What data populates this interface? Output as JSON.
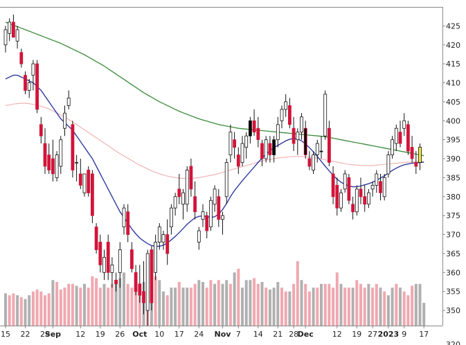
{
  "chart_data": {
    "type": "candlestick",
    "colors": {
      "up_candle": "#ffffff",
      "down_candle": "#d2143a",
      "filled_up_candle": "#000000",
      "last_candle": "#f2e443",
      "ma_short": "#2e3a9e",
      "ma_long": "#3a8a3a",
      "ma_mid": "#f2b4b4",
      "volume_down": "#f0a8b0",
      "volume_up": "#b0b0b0"
    },
    "y_axis": {
      "min": 346,
      "max": 430,
      "ticks": [
        425,
        420,
        415,
        410,
        405,
        400,
        395,
        390,
        385,
        380,
        375,
        370,
        365,
        360,
        355,
        350
      ],
      "partial_bottom_tick": "320"
    },
    "x_labels": [
      {
        "text": "15",
        "i": 0
      },
      {
        "text": "22",
        "i": 5
      },
      {
        "text": "29",
        "i": 10
      },
      {
        "text": "Sep",
        "i": 12,
        "bold": true
      },
      {
        "text": "12",
        "i": 19
      },
      {
        "text": "19",
        "i": 24
      },
      {
        "text": "26",
        "i": 29
      },
      {
        "text": "Oct",
        "i": 34,
        "bold": true
      },
      {
        "text": "10",
        "i": 39
      },
      {
        "text": "17",
        "i": 44
      },
      {
        "text": "24",
        "i": 49
      },
      {
        "text": "Nov",
        "i": 55,
        "bold": true
      },
      {
        "text": "7",
        "i": 59
      },
      {
        "text": "14",
        "i": 64
      },
      {
        "text": "21",
        "i": 69
      },
      {
        "text": "28",
        "i": 73
      },
      {
        "text": "Dec",
        "i": 76,
        "bold": true
      },
      {
        "text": "12",
        "i": 84
      },
      {
        "text": "19",
        "i": 89
      },
      {
        "text": "27",
        "i": 93
      },
      {
        "text": "2023",
        "i": 97,
        "bold": true
      },
      {
        "text": "9",
        "i": 101
      },
      {
        "text": "17",
        "i": 106
      }
    ],
    "candles": [
      {
        "o": 420,
        "h": 425,
        "l": 418,
        "c": 424
      },
      {
        "o": 423,
        "h": 427,
        "l": 421,
        "c": 426
      },
      {
        "o": 426,
        "h": 428,
        "l": 422,
        "c": 422
      },
      {
        "o": 421,
        "h": 425,
        "l": 419,
        "c": 424
      },
      {
        "o": 418,
        "h": 419,
        "l": 414,
        "c": 415
      },
      {
        "o": 412,
        "h": 413,
        "l": 407,
        "c": 408
      },
      {
        "o": 408,
        "h": 411,
        "l": 406,
        "c": 410
      },
      {
        "o": 412,
        "h": 416,
        "l": 408,
        "c": 415
      },
      {
        "o": 415,
        "h": 416,
        "l": 402,
        "c": 403
      },
      {
        "o": 399,
        "h": 401,
        "l": 394,
        "c": 396
      },
      {
        "o": 394,
        "h": 398,
        "l": 386,
        "c": 388
      },
      {
        "o": 391,
        "h": 394,
        "l": 386,
        "c": 387
      },
      {
        "o": 390,
        "h": 395,
        "l": 384,
        "c": 386
      },
      {
        "o": 385,
        "h": 392,
        "l": 384,
        "c": 391
      },
      {
        "o": 388,
        "h": 396,
        "l": 386,
        "c": 395
      },
      {
        "o": 398,
        "h": 404,
        "l": 396,
        "c": 402
      },
      {
        "o": 404,
        "h": 408,
        "l": 403,
        "c": 406
      },
      {
        "o": 399,
        "h": 400,
        "l": 385,
        "c": 387
      },
      {
        "o": 389,
        "h": 391,
        "l": 384,
        "c": 389
      },
      {
        "o": 386,
        "h": 390,
        "l": 382,
        "c": 383
      },
      {
        "o": 381,
        "h": 386,
        "l": 380,
        "c": 386
      },
      {
        "o": 387,
        "h": 388,
        "l": 380,
        "c": 381
      },
      {
        "o": 386,
        "h": 387,
        "l": 373,
        "c": 375
      },
      {
        "o": 372,
        "h": 373,
        "l": 365,
        "c": 366
      },
      {
        "o": 368,
        "h": 370,
        "l": 360,
        "c": 362
      },
      {
        "o": 360,
        "h": 366,
        "l": 358,
        "c": 364
      },
      {
        "o": 368,
        "h": 370,
        "l": 358,
        "c": 360
      },
      {
        "o": 360,
        "h": 364,
        "l": 356,
        "c": 362
      },
      {
        "o": 358,
        "h": 360,
        "l": 355,
        "c": 357
      },
      {
        "o": 360,
        "h": 368,
        "l": 356,
        "c": 366
      },
      {
        "o": 372,
        "h": 378,
        "l": 370,
        "c": 377
      },
      {
        "o": 376,
        "h": 378,
        "l": 368,
        "c": 370
      },
      {
        "o": 366,
        "h": 368,
        "l": 360,
        "c": 361
      },
      {
        "o": 360,
        "h": 362,
        "l": 354,
        "c": 355
      },
      {
        "o": 357,
        "h": 362,
        "l": 352,
        "c": 354
      },
      {
        "o": 355,
        "h": 363,
        "l": 349,
        "c": 352
      },
      {
        "o": 350,
        "h": 366,
        "l": 346,
        "c": 365
      },
      {
        "o": 366,
        "h": 367,
        "l": 350,
        "c": 352
      },
      {
        "o": 360,
        "h": 370,
        "l": 358,
        "c": 368
      },
      {
        "o": 368,
        "h": 373,
        "l": 366,
        "c": 372
      },
      {
        "o": 368,
        "h": 371,
        "l": 366,
        "c": 370
      },
      {
        "o": 370,
        "h": 374,
        "l": 362,
        "c": 365
      },
      {
        "o": 372,
        "h": 378,
        "l": 370,
        "c": 377
      },
      {
        "o": 377,
        "h": 381,
        "l": 375,
        "c": 380
      },
      {
        "o": 382,
        "h": 386,
        "l": 378,
        "c": 380
      },
      {
        "o": 378,
        "h": 382,
        "l": 374,
        "c": 381
      },
      {
        "o": 378,
        "h": 388,
        "l": 376,
        "c": 387
      },
      {
        "o": 388,
        "h": 390,
        "l": 380,
        "c": 382
      },
      {
        "o": 380,
        "h": 384,
        "l": 374,
        "c": 376
      },
      {
        "o": 368,
        "h": 372,
        "l": 366,
        "c": 371
      },
      {
        "o": 374,
        "h": 378,
        "l": 372,
        "c": 376
      },
      {
        "o": 375,
        "h": 376,
        "l": 369,
        "c": 371
      },
      {
        "o": 372,
        "h": 380,
        "l": 371,
        "c": 379
      },
      {
        "o": 378,
        "h": 383,
        "l": 376,
        "c": 382
      },
      {
        "o": 380,
        "h": 382,
        "l": 372,
        "c": 374
      },
      {
        "o": 374,
        "h": 376,
        "l": 370,
        "c": 375
      },
      {
        "o": 380,
        "h": 390,
        "l": 378,
        "c": 389
      },
      {
        "o": 391,
        "h": 399,
        "l": 389,
        "c": 397
      },
      {
        "o": 395,
        "h": 397,
        "l": 390,
        "c": 393
      },
      {
        "o": 391,
        "h": 393,
        "l": 386,
        "c": 388
      },
      {
        "o": 389,
        "h": 396,
        "l": 388,
        "c": 394
      },
      {
        "o": 393,
        "h": 397,
        "l": 390,
        "c": 396
      },
      {
        "o": 396,
        "h": 401,
        "l": 394,
        "c": 400
      },
      {
        "o": 400,
        "h": 403,
        "l": 396,
        "c": 397
      },
      {
        "o": 398,
        "h": 401,
        "l": 393,
        "c": 395
      },
      {
        "o": 394,
        "h": 395,
        "l": 388,
        "c": 390
      },
      {
        "o": 390,
        "h": 396,
        "l": 389,
        "c": 395
      },
      {
        "o": 394,
        "h": 396,
        "l": 389,
        "c": 391
      },
      {
        "o": 391,
        "h": 396,
        "l": 389,
        "c": 395
      },
      {
        "o": 395,
        "h": 401,
        "l": 393,
        "c": 399
      },
      {
        "o": 400,
        "h": 404,
        "l": 398,
        "c": 403
      },
      {
        "o": 403,
        "h": 407,
        "l": 401,
        "c": 405
      },
      {
        "o": 404,
        "h": 406,
        "l": 398,
        "c": 399
      },
      {
        "o": 398,
        "h": 401,
        "l": 392,
        "c": 394
      },
      {
        "o": 395,
        "h": 398,
        "l": 391,
        "c": 397
      },
      {
        "o": 397,
        "h": 402,
        "l": 395,
        "c": 401
      },
      {
        "o": 398,
        "h": 400,
        "l": 390,
        "c": 391
      },
      {
        "o": 390,
        "h": 392,
        "l": 387,
        "c": 388
      },
      {
        "o": 387,
        "h": 392,
        "l": 386,
        "c": 391
      },
      {
        "o": 391,
        "h": 395,
        "l": 389,
        "c": 394
      },
      {
        "o": 392,
        "h": 396,
        "l": 390,
        "c": 392
      },
      {
        "o": 396,
        "h": 408,
        "l": 395,
        "c": 407
      },
      {
        "o": 398,
        "h": 400,
        "l": 388,
        "c": 389
      },
      {
        "o": 386,
        "h": 388,
        "l": 378,
        "c": 380
      },
      {
        "o": 383,
        "h": 385,
        "l": 375,
        "c": 377
      },
      {
        "o": 377,
        "h": 382,
        "l": 376,
        "c": 381
      },
      {
        "o": 382,
        "h": 387,
        "l": 381,
        "c": 386
      },
      {
        "o": 385,
        "h": 386,
        "l": 378,
        "c": 379
      },
      {
        "o": 378,
        "h": 380,
        "l": 374,
        "c": 376
      },
      {
        "o": 376,
        "h": 383,
        "l": 375,
        "c": 382
      },
      {
        "o": 382,
        "h": 385,
        "l": 378,
        "c": 380
      },
      {
        "o": 380,
        "h": 383,
        "l": 376,
        "c": 378
      },
      {
        "o": 378,
        "h": 382,
        "l": 377,
        "c": 381
      },
      {
        "o": 382,
        "h": 384,
        "l": 380,
        "c": 383
      },
      {
        "o": 383,
        "h": 387,
        "l": 381,
        "c": 386
      },
      {
        "o": 384,
        "h": 386,
        "l": 379,
        "c": 381
      },
      {
        "o": 380,
        "h": 386,
        "l": 379,
        "c": 385
      },
      {
        "o": 386,
        "h": 392,
        "l": 385,
        "c": 391
      },
      {
        "o": 391,
        "h": 396,
        "l": 390,
        "c": 395
      },
      {
        "o": 394,
        "h": 399,
        "l": 392,
        "c": 398
      },
      {
        "o": 397,
        "h": 400,
        "l": 393,
        "c": 394
      },
      {
        "o": 398,
        "h": 402,
        "l": 396,
        "c": 400
      },
      {
        "o": 399,
        "h": 400,
        "l": 391,
        "c": 392
      },
      {
        "o": 393,
        "h": 396,
        "l": 389,
        "c": 390
      },
      {
        "o": 389,
        "h": 392,
        "l": 386,
        "c": 388
      },
      {
        "o": 389,
        "h": 394,
        "l": 387,
        "c": 393
      }
    ],
    "ma_short": [
      411,
      411.5,
      412,
      412,
      411.5,
      411,
      410.5,
      410,
      409,
      408,
      406.5,
      405,
      403.5,
      402,
      400.5,
      399.5,
      398.5,
      397.5,
      396,
      394.5,
      393,
      391.5,
      390,
      388,
      386,
      384,
      382,
      380,
      378,
      376,
      374.5,
      373,
      371.5,
      370.2,
      369.1,
      368.3,
      367.6,
      367.1,
      366.9,
      366.9,
      367.2,
      367.8,
      368.6,
      369.5,
      370.5,
      371.6,
      372.7,
      373.6,
      374.4,
      374.8,
      374.9,
      374.8,
      374.5,
      374.7,
      375.4,
      376.6,
      378.2,
      380,
      381.6,
      382.9,
      384.2,
      385.4,
      386.6,
      387.8,
      389,
      390.2,
      391.2,
      392.1,
      392.9,
      393.5,
      394.1,
      394.7,
      395.1,
      395.3,
      395.2,
      394.7,
      393.9,
      392.9,
      391.8,
      390.6,
      389.3,
      388,
      386.8,
      385.6,
      384.6,
      383.8,
      383.2,
      382.8,
      382.6,
      382.6,
      382.8,
      383.1,
      383.4,
      383.8,
      384.3,
      384.9,
      385.5,
      386.2,
      386.9,
      387.5,
      388,
      388.4,
      388.6,
      388.8,
      388.9,
      389,
      389.1
    ],
    "ma_long": [
      426,
      425.6,
      425.2,
      424.8,
      424.4,
      424,
      423.6,
      423.2,
      422.8,
      422.4,
      422,
      421.6,
      421.2,
      420.8,
      420.4,
      419.9,
      419.4,
      418.9,
      418.4,
      417.9,
      417.4,
      416.8,
      416.2,
      415.6,
      415,
      414.4,
      413.7,
      413,
      412.3,
      411.6,
      410.9,
      410.2,
      409.5,
      408.8,
      408.1,
      407.4,
      406.8,
      406.2,
      405.6,
      405,
      404.5,
      404,
      403.5,
      403,
      402.5,
      402.1,
      401.7,
      401.3,
      400.9,
      400.5,
      400.2,
      399.9,
      399.6,
      399.3,
      399,
      398.8,
      398.6,
      398.4,
      398.2,
      398,
      397.9,
      397.8,
      397.7,
      397.6,
      397.5,
      397.4,
      397.3,
      397.2,
      397.1,
      397,
      396.9,
      396.8,
      396.7,
      396.6,
      396.5,
      396.4,
      396.3,
      396.2,
      396.1,
      396,
      395.9,
      395.8,
      395.6,
      395.4,
      395.2,
      395,
      394.8,
      394.6,
      394.4,
      394.2,
      394,
      393.8,
      393.6,
      393.4,
      393.2,
      393,
      392.8,
      392.6,
      392.4,
      392.2,
      392,
      391.8,
      391.6,
      391.4,
      391.2,
      391,
      390.8
    ],
    "ma_mid": [
      404,
      404.2,
      404.4,
      404.5,
      404.6,
      404.6,
      404.5,
      404.3,
      404.1,
      403.8,
      403.5,
      403.1,
      402.6,
      402.1,
      401.5,
      400.9,
      400.3,
      399.7,
      399,
      398.3,
      397.6,
      396.9,
      396.2,
      395.5,
      394.8,
      394.1,
      393.4,
      392.7,
      392,
      391.3,
      390.7,
      390.1,
      389.5,
      388.9,
      388.3,
      387.8,
      387.3,
      386.8,
      386.4,
      386,
      385.7,
      385.4,
      385.2,
      385,
      384.9,
      384.8,
      384.8,
      384.8,
      384.9,
      385,
      385.2,
      385.4,
      385.6,
      385.8,
      386.1,
      386.4,
      386.7,
      387,
      387.3,
      387.6,
      387.9,
      388.2,
      388.5,
      388.8,
      389.1,
      389.4,
      389.6,
      389.8,
      390,
      390.2,
      390.3,
      390.4,
      390.5,
      390.6,
      390.6,
      390.6,
      390.5,
      390.4,
      390.3,
      390.1,
      389.9,
      389.7,
      389.5,
      389.3,
      389.1,
      388.9,
      388.7,
      388.5,
      388.4,
      388.3,
      388.2,
      388.2,
      388.2,
      388.2,
      388.3,
      388.4,
      388.5,
      388.6,
      388.7,
      388.8,
      388.9,
      389,
      389.1,
      389.1,
      389.2,
      389.2,
      389.2
    ],
    "volume_scale": "shown in price-axis units (height of bar tops on the 350-360 band)",
    "volume": [
      354.5,
      354,
      354.5,
      354,
      353.5,
      353,
      354,
      355,
      355.5,
      355,
      354,
      354.5,
      358,
      357.5,
      355.5,
      356,
      357,
      357,
      356.5,
      356,
      357,
      356,
      359,
      358.5,
      356,
      357,
      356,
      357,
      358,
      358.5,
      360,
      357,
      356,
      357,
      356,
      357.5,
      355,
      355,
      359,
      358,
      355,
      354,
      356,
      356,
      357.5,
      356,
      356,
      356,
      357,
      358,
      357.5,
      356,
      358,
      357,
      358,
      357,
      358,
      357,
      360,
      361,
      356,
      358,
      358,
      358.5,
      357,
      357.5,
      356,
      355.5,
      356,
      357.5,
      356,
      355,
      355,
      357,
      363,
      358,
      357,
      355,
      356,
      356,
      357,
      357,
      357,
      356,
      360,
      357,
      356,
      356,
      356,
      358,
      357,
      356,
      357,
      356,
      357,
      356,
      355,
      354,
      356,
      357,
      356,
      355,
      354,
      356.5,
      357,
      357,
      352
    ],
    "volume_down_flags": [
      0,
      1,
      1,
      0,
      1,
      0,
      0,
      1,
      1,
      1,
      1,
      1,
      0,
      1,
      1,
      1,
      1,
      1,
      0,
      1,
      0,
      1,
      1,
      1,
      1,
      0,
      1,
      1,
      0,
      0,
      0,
      1,
      1,
      1,
      1,
      0,
      1,
      0,
      1,
      0,
      0,
      1,
      0,
      0,
      1,
      0,
      0,
      1,
      1,
      0,
      0,
      1,
      1,
      0,
      1,
      0,
      0,
      1,
      0,
      1,
      0,
      0,
      0,
      1,
      1,
      0,
      1,
      0,
      0,
      0,
      1,
      1,
      0,
      1,
      1,
      0,
      1,
      1,
      0,
      1,
      0,
      1,
      1,
      1,
      1,
      0,
      1,
      1,
      0,
      1,
      1,
      1,
      0,
      1,
      1,
      0,
      1,
      0,
      0,
      1,
      0,
      1,
      1,
      1,
      0,
      0,
      0
    ]
  }
}
